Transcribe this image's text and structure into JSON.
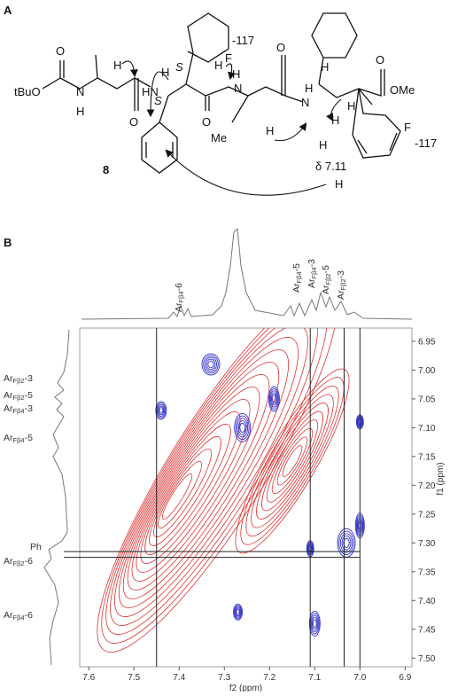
{
  "panel_a": {
    "letter": "A",
    "compound": "8",
    "atoms": [
      "O",
      "tBuO",
      "N",
      "H",
      "H",
      "O",
      "HN",
      "S",
      "H",
      "F",
      "-117",
      "S",
      "H",
      "O",
      "H",
      "N",
      "O",
      "Me",
      "H",
      "H",
      "N",
      "H",
      "O",
      "OMe",
      "H",
      "H",
      "F",
      "-117",
      "H",
      "δ 7.11",
      "H"
    ]
  },
  "panel_b": {
    "letter": "B",
    "xlim": [
      7.62,
      6.885
    ],
    "ylim": [
      6.927,
      7.515
    ],
    "xticks": [
      7.6,
      7.5,
      7.4,
      7.3,
      7.2,
      7.1,
      {
        "value": 7.0,
        "label": "7.0"
      },
      6.9
    ],
    "yticks": [
      6.95,
      {
        "value": 7.0,
        "label": "7.00"
      },
      7.05,
      {
        "value": 7.1,
        "label": "7.10"
      },
      7.15,
      {
        "value": 7.2,
        "label": "7.20"
      },
      7.25,
      {
        "value": 7.3,
        "label": "7.30"
      },
      7.35,
      {
        "value": 7.4,
        "label": "7.40"
      },
      7.45,
      {
        "value": 7.5,
        "label": "7.50"
      }
    ],
    "xlabel": "f2 (ppm)",
    "ylabel": "f1 (ppm)",
    "guide_f2": [
      7.45,
      7.11,
      7.035,
      7.0
    ],
    "guide_f1": [
      7.315,
      7.325
    ],
    "top_labels": [
      {
        "base": "Ar",
        "sub": "Fβ4",
        "suffix": "-6"
      },
      {
        "base": "Ar",
        "sub": "Fβ4",
        "suffix": "-5"
      },
      {
        "base": "Ar",
        "sub": "Fβ4",
        "suffix": "-3"
      },
      {
        "base": "Ar",
        "sub": "Fβ2",
        "suffix": "-5"
      },
      {
        "base": "Ar",
        "sub": "Fβ2",
        "suffix": "-3"
      }
    ],
    "left_labels": [
      {
        "base": "Ar",
        "sub": "Fβ2",
        "suffix": "-3"
      },
      {
        "base": "Ar",
        "sub": "Fβ2",
        "suffix": "-5"
      },
      {
        "base": "Ar",
        "sub": "Fβ4",
        "suffix": "-3"
      },
      {
        "base": "Ar",
        "sub": "Fβ4",
        "suffix": "-5"
      },
      {
        "base": "Ph"
      },
      {
        "base": "Ar",
        "sub": "Fβ2",
        "suffix": "-6"
      },
      {
        "base": "Ar",
        "sub": "Fβ4",
        "suffix": "-6"
      }
    ]
  }
}
